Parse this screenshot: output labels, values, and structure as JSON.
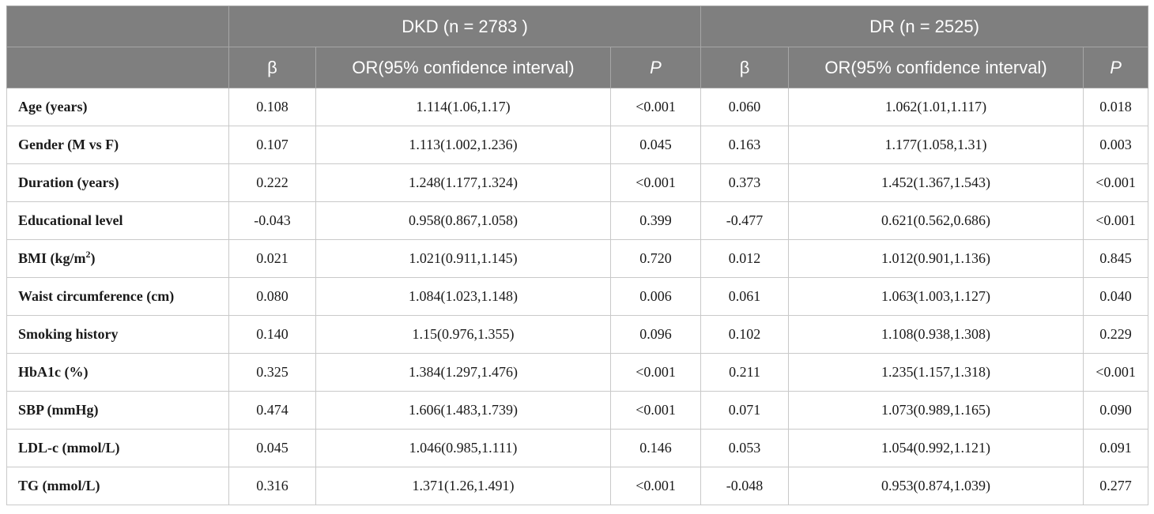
{
  "table": {
    "groups": [
      {
        "label": "DKD (n = 2783 )"
      },
      {
        "label": "DR (n = 2525)"
      }
    ],
    "subheaders": {
      "beta": "β",
      "or": "OR(95% confidence interval)",
      "p": "P"
    },
    "rows": [
      {
        "label": "Age (years)",
        "sup": "",
        "label_after": "",
        "dkd_beta": "0.108",
        "dkd_or": "1.114(1.06,1.17)",
        "dkd_p": "<0.001",
        "dr_beta": "0.060",
        "dr_or": "1.062(1.01,1.117)",
        "dr_p": "0.018"
      },
      {
        "label": "Gender (M vs F)",
        "sup": "",
        "label_after": "",
        "dkd_beta": "0.107",
        "dkd_or": "1.113(1.002,1.236)",
        "dkd_p": "0.045",
        "dr_beta": "0.163",
        "dr_or": "1.177(1.058,1.31)",
        "dr_p": "0.003"
      },
      {
        "label": "Duration (years)",
        "sup": "",
        "label_after": "",
        "dkd_beta": "0.222",
        "dkd_or": "1.248(1.177,1.324)",
        "dkd_p": "<0.001",
        "dr_beta": "0.373",
        "dr_or": "1.452(1.367,1.543)",
        "dr_p": "<0.001"
      },
      {
        "label": "Educational level",
        "sup": "",
        "label_after": "",
        "dkd_beta": "-0.043",
        "dkd_or": "0.958(0.867,1.058)",
        "dkd_p": "0.399",
        "dr_beta": "-0.477",
        "dr_or": "0.621(0.562,0.686)",
        "dr_p": "<0.001"
      },
      {
        "label": "BMI (kg/m",
        "sup": "2",
        "label_after": ")",
        "dkd_beta": "0.021",
        "dkd_or": "1.021(0.911,1.145)",
        "dkd_p": "0.720",
        "dr_beta": "0.012",
        "dr_or": "1.012(0.901,1.136)",
        "dr_p": "0.845"
      },
      {
        "label": "Waist circumference (cm)",
        "sup": "",
        "label_after": "",
        "dkd_beta": "0.080",
        "dkd_or": "1.084(1.023,1.148)",
        "dkd_p": "0.006",
        "dr_beta": "0.061",
        "dr_or": "1.063(1.003,1.127)",
        "dr_p": "0.040"
      },
      {
        "label": "Smoking history",
        "sup": "",
        "label_after": "",
        "dkd_beta": "0.140",
        "dkd_or": "1.15(0.976,1.355)",
        "dkd_p": "0.096",
        "dr_beta": "0.102",
        "dr_or": "1.108(0.938,1.308)",
        "dr_p": "0.229"
      },
      {
        "label": "HbA1c (%)",
        "sup": "",
        "label_after": "",
        "dkd_beta": "0.325",
        "dkd_or": "1.384(1.297,1.476)",
        "dkd_p": "<0.001",
        "dr_beta": "0.211",
        "dr_or": "1.235(1.157,1.318)",
        "dr_p": "<0.001"
      },
      {
        "label": "SBP (mmHg)",
        "sup": "",
        "label_after": "",
        "dkd_beta": "0.474",
        "dkd_or": "1.606(1.483,1.739)",
        "dkd_p": "<0.001",
        "dr_beta": "0.071",
        "dr_or": "1.073(0.989,1.165)",
        "dr_p": "0.090"
      },
      {
        "label": "LDL-c (mmol/L)",
        "sup": "",
        "label_after": "",
        "dkd_beta": "0.045",
        "dkd_or": "1.046(0.985,1.111)",
        "dkd_p": "0.146",
        "dr_beta": "0.053",
        "dr_or": "1.054(0.992,1.121)",
        "dr_p": "0.091"
      },
      {
        "label": "TG (mmol/L)",
        "sup": "",
        "label_after": "",
        "dkd_beta": "0.316",
        "dkd_or": "1.371(1.26,1.491)",
        "dkd_p": "<0.001",
        "dr_beta": "-0.048",
        "dr_or": "0.953(0.874,1.039)",
        "dr_p": "0.277"
      }
    ]
  }
}
